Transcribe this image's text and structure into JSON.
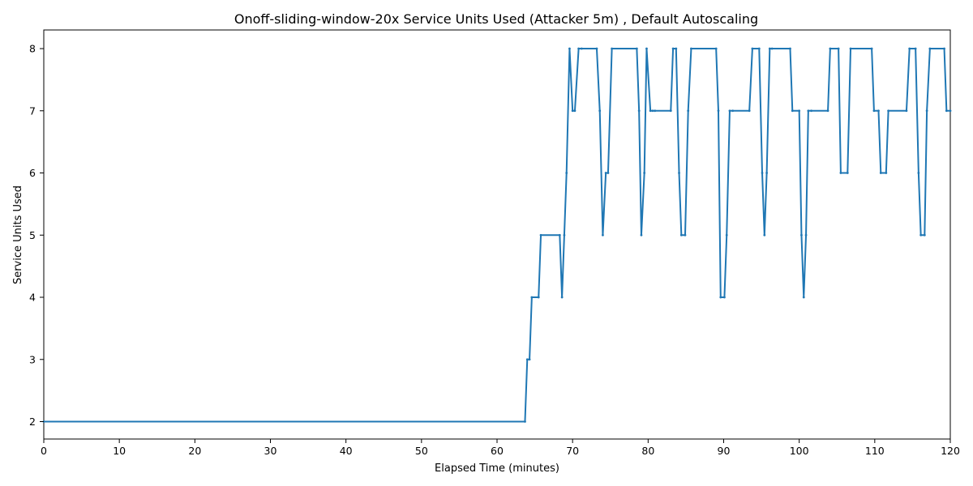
{
  "chart_data": {
    "type": "line",
    "title": "Onoff-sliding-window-20x Service Units Used (Attacker 5m) , Default Autoscaling",
    "xlabel": "Elapsed Time (minutes)",
    "ylabel": "Service Units Used",
    "xlim": [
      0,
      120
    ],
    "ylim": [
      1.72,
      8.3
    ],
    "x_ticks": [
      0,
      10,
      20,
      30,
      40,
      50,
      60,
      70,
      80,
      90,
      100,
      110,
      120
    ],
    "y_ticks": [
      2,
      3,
      4,
      5,
      6,
      7,
      8
    ],
    "x_tick_labels": [
      "0",
      "10",
      "20",
      "30",
      "40",
      "50",
      "60",
      "70",
      "80",
      "90",
      "100",
      "110",
      "120"
    ],
    "y_tick_labels": [
      "2",
      "3",
      "4",
      "5",
      "6",
      "7",
      "8"
    ],
    "grid": false,
    "legend": false,
    "line_color": "#1f77b4",
    "series": [
      {
        "x": [
          0,
          63.7,
          64.0,
          64.3,
          64.6,
          65.5,
          65.8,
          68.3,
          68.6,
          68.9,
          69.2,
          69.6,
          70.0,
          70.3,
          70.8,
          71.2,
          73.2,
          73.6,
          74.0,
          74.4,
          74.7,
          75.2,
          78.5,
          78.8,
          79.1,
          79.5,
          79.8,
          80.3,
          80.6,
          80.9,
          83.0,
          83.3,
          83.7,
          84.1,
          84.4,
          84.9,
          85.3,
          85.7,
          89.0,
          89.3,
          89.6,
          90.1,
          90.4,
          90.8,
          91.2,
          93.4,
          93.8,
          94.7,
          95.1,
          95.4,
          95.7,
          96.1,
          96.4,
          98.8,
          99.1,
          100.0,
          100.3,
          100.6,
          100.9,
          101.2,
          101.6,
          103.8,
          104.1,
          105.2,
          105.5,
          106.4,
          106.8,
          109.6,
          109.9,
          110.5,
          110.8,
          111.5,
          111.8,
          114.2,
          114.6,
          115.4,
          115.8,
          116.1,
          116.6,
          116.9,
          117.3,
          119.2,
          119.5,
          120.0
        ],
        "y": [
          2,
          2,
          3,
          3,
          4,
          4,
          5,
          5,
          4,
          5,
          6,
          8,
          7,
          7,
          8,
          8,
          8,
          7,
          5,
          6,
          6,
          8,
          8,
          7,
          5,
          6,
          8,
          7,
          7,
          7,
          7,
          8,
          8,
          6,
          5,
          5,
          7,
          8,
          8,
          7,
          4,
          4,
          5,
          7,
          7,
          7,
          8,
          8,
          6,
          5,
          6,
          8,
          8,
          8,
          7,
          7,
          5,
          4,
          5,
          7,
          7,
          7,
          8,
          8,
          6,
          6,
          8,
          8,
          7,
          7,
          6,
          6,
          7,
          7,
          8,
          8,
          6,
          5,
          5,
          7,
          8,
          8,
          7,
          7
        ]
      }
    ]
  }
}
